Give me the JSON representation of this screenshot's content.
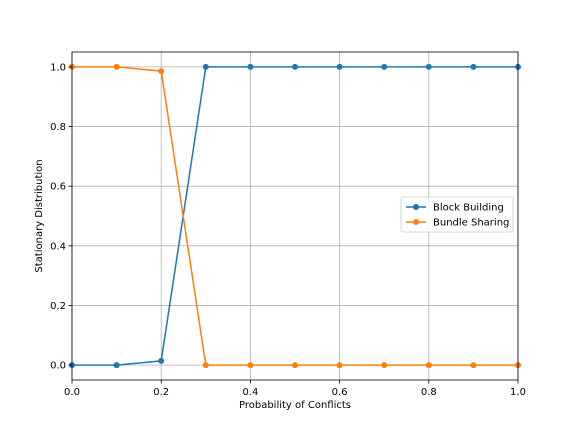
{
  "chart_data": {
    "type": "line",
    "xlabel": "Probability of Conflicts",
    "ylabel": "Stationary Distribution",
    "xlim": [
      0,
      1
    ],
    "ylim": [
      -0.05,
      1.05
    ],
    "xticks": [
      0,
      0.2,
      0.4,
      0.6,
      0.8,
      1.0
    ],
    "yticks": [
      0,
      0.2,
      0.4,
      0.6,
      0.8,
      1.0
    ],
    "xtick_labels": [
      "0.0",
      "0.2",
      "0.4",
      "0.6",
      "0.8",
      "1.0"
    ],
    "ytick_labels": [
      "0.0",
      "0.2",
      "0.4",
      "0.6",
      "0.8",
      "1.0"
    ],
    "grid": true,
    "legend_position": "center-right",
    "x": [
      0.0,
      0.1,
      0.2,
      0.3,
      0.4,
      0.5,
      0.6,
      0.7,
      0.8,
      0.9,
      1.0
    ],
    "series": [
      {
        "name": "Block Building",
        "color": "#1f77b4",
        "values": [
          0.0,
          0.0,
          0.014,
          1.0,
          1.0,
          1.0,
          1.0,
          1.0,
          1.0,
          1.0,
          1.0
        ]
      },
      {
        "name": "Bundle Sharing",
        "color": "#ff7f0e",
        "values": [
          1.0,
          1.0,
          0.986,
          0.0,
          0.0,
          0.0,
          0.0,
          0.0,
          0.0,
          0.0,
          0.0
        ]
      }
    ]
  }
}
